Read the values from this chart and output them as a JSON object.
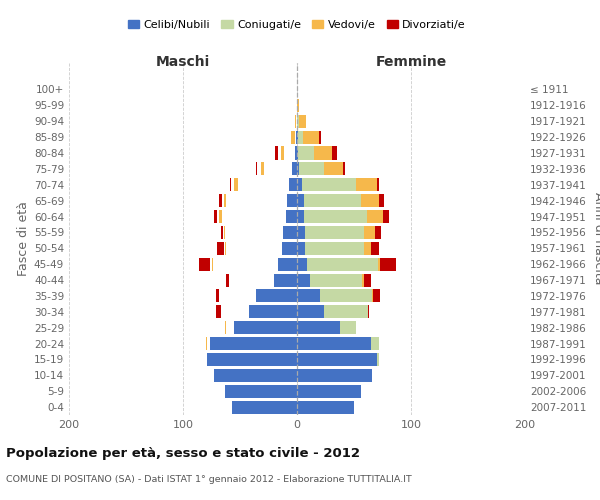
{
  "age_groups": [
    "0-4",
    "5-9",
    "10-14",
    "15-19",
    "20-24",
    "25-29",
    "30-34",
    "35-39",
    "40-44",
    "45-49",
    "50-54",
    "55-59",
    "60-64",
    "65-69",
    "70-74",
    "75-79",
    "80-84",
    "85-89",
    "90-94",
    "95-99",
    "100+"
  ],
  "birth_years": [
    "2007-2011",
    "2002-2006",
    "1997-2001",
    "1992-1996",
    "1987-1991",
    "1982-1986",
    "1977-1981",
    "1972-1976",
    "1967-1971",
    "1962-1966",
    "1957-1961",
    "1952-1956",
    "1947-1951",
    "1942-1946",
    "1937-1941",
    "1932-1936",
    "1927-1931",
    "1922-1926",
    "1917-1921",
    "1912-1916",
    "≤ 1911"
  ],
  "male_celibi": [
    57,
    63,
    73,
    79,
    76,
    55,
    42,
    36,
    20,
    17,
    13,
    12,
    10,
    9,
    7,
    4,
    2,
    1,
    0,
    0,
    0
  ],
  "male_coniugati": [
    0,
    0,
    0,
    0,
    4,
    8,
    25,
    32,
    40,
    58,
    50,
    52,
    58,
    55,
    48,
    28,
    12,
    4,
    2,
    0,
    0
  ],
  "male_vedovi": [
    0,
    0,
    0,
    0,
    1,
    1,
    0,
    0,
    0,
    1,
    1,
    1,
    2,
    2,
    3,
    3,
    3,
    3,
    1,
    0,
    0
  ],
  "male_divorziati": [
    0,
    0,
    0,
    0,
    0,
    0,
    4,
    3,
    2,
    10,
    6,
    2,
    3,
    2,
    1,
    1,
    2,
    0,
    0,
    0,
    0
  ],
  "fem_nubili": [
    50,
    56,
    66,
    70,
    65,
    38,
    24,
    20,
    11,
    9,
    7,
    7,
    6,
    6,
    4,
    2,
    1,
    1,
    0,
    0,
    0
  ],
  "fem_coniugate": [
    0,
    0,
    0,
    2,
    7,
    14,
    38,
    46,
    46,
    62,
    52,
    52,
    55,
    50,
    48,
    22,
    14,
    4,
    2,
    0,
    0
  ],
  "fem_vedove": [
    0,
    0,
    0,
    0,
    0,
    0,
    0,
    1,
    2,
    2,
    6,
    9,
    14,
    16,
    18,
    16,
    16,
    14,
    6,
    2,
    0
  ],
  "fem_divorziate": [
    0,
    0,
    0,
    0,
    0,
    0,
    1,
    6,
    6,
    14,
    7,
    6,
    6,
    4,
    2,
    2,
    4,
    2,
    0,
    0,
    0
  ],
  "colors": {
    "celibi": "#4472C4",
    "coniugati": "#C5D9A4",
    "vedovi": "#F6B84B",
    "divorziati": "#C00000"
  },
  "title": "Popolazione per età, sesso e stato civile - 2012",
  "subtitle": "COMUNE DI POSITANO (SA) - Dati ISTAT 1° gennaio 2012 - Elaborazione TUTTITALIA.IT",
  "xlabel_left": "Maschi",
  "xlabel_right": "Femmine",
  "ylabel_left": "Fasce di età",
  "ylabel_right": "Anni di nascita",
  "xlim": 200,
  "legend_labels": [
    "Celibi/Nubili",
    "Coniugati/e",
    "Vedovi/e",
    "Divorziati/e"
  ]
}
